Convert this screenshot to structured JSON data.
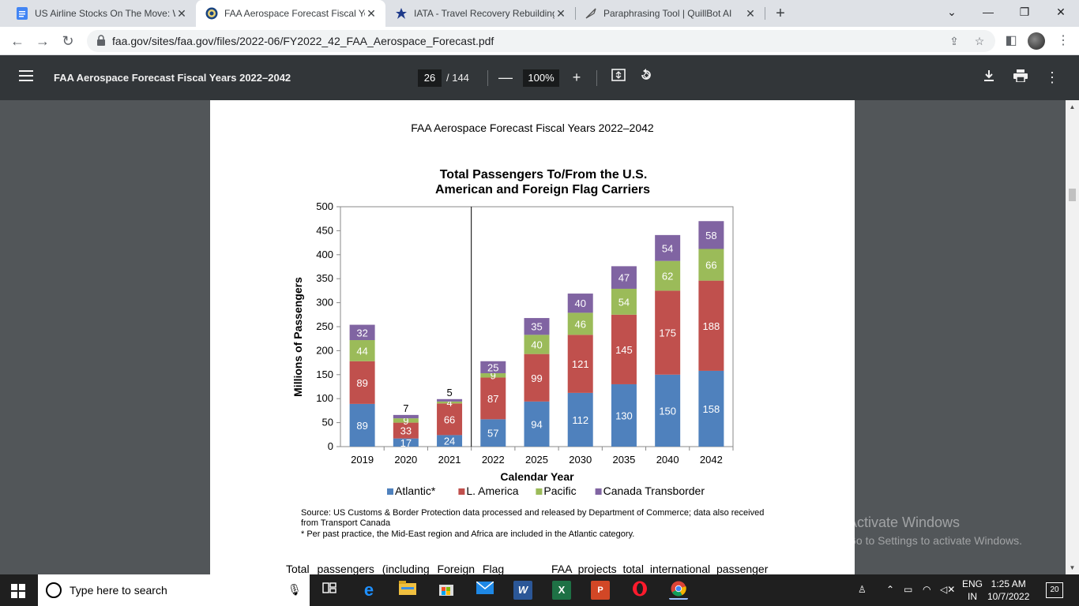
{
  "tabs": [
    {
      "title": "US Airline Stocks On The Move: W",
      "icon": "google-docs-icon",
      "active": false
    },
    {
      "title": "FAA Aerospace Forecast Fiscal Ye",
      "icon": "faa-seal-icon",
      "active": true
    },
    {
      "title": "IATA - Travel Recovery Rebuilding",
      "icon": "iata-icon",
      "active": false
    },
    {
      "title": "Paraphrasing Tool | QuillBot AI",
      "icon": "quillbot-icon",
      "active": false
    }
  ],
  "tab_close": "✕",
  "new_tab": "+",
  "window": {
    "minimize": "—",
    "maximize": "❐",
    "close": "✕",
    "tab_search": "⌄"
  },
  "address": {
    "url": "faa.gov/sites/faa.gov/files/2022-06/FY2022_42_FAA_Aerospace_Forecast.pdf"
  },
  "pdf_toolbar": {
    "title": "FAA Aerospace Forecast Fiscal Years 2022–2042",
    "page_current": "26",
    "page_total": "/ 144",
    "zoom": "100%",
    "zoom_out": "—",
    "zoom_in": "+"
  },
  "document": {
    "header": "FAA Aerospace Forecast Fiscal Years 2022–2042",
    "source": "Source:  US Customs & Border Protection data processed and released by Department of Commerce; data also received from Transport Canada",
    "note": "* Per past practice, the Mid-East region and Africa are included in the Atlantic category.",
    "body_left": "Total passengers (including Foreign Flag",
    "body_right": "FAA projects total international passenger"
  },
  "chart_data": {
    "type": "bar",
    "stacked": true,
    "title": "Total Passengers To/From the U.S.",
    "subtitle": "American and Foreign Flag Carriers",
    "xlabel": "Calendar Year",
    "ylabel": "Millions of Passengers",
    "ylim": [
      0,
      500
    ],
    "yticks": [
      0,
      50,
      100,
      150,
      200,
      250,
      300,
      350,
      400,
      450,
      500
    ],
    "categories": [
      "2019",
      "2020",
      "2021",
      "2022",
      "2025",
      "2030",
      "2035",
      "2040",
      "2042"
    ],
    "series": [
      {
        "name": "Atlantic*",
        "color": "#4f81bd",
        "values": [
          89,
          17,
          24,
          57,
          94,
          112,
          130,
          150,
          158
        ]
      },
      {
        "name": "L. America",
        "color": "#c0504d",
        "values": [
          89,
          33,
          66,
          87,
          99,
          121,
          145,
          175,
          188
        ]
      },
      {
        "name": "Pacific",
        "color": "#9bbb59",
        "values": [
          44,
          9,
          4,
          9,
          40,
          46,
          54,
          62,
          66
        ]
      },
      {
        "name": "Canada Transborder",
        "color": "#8064a2",
        "values": [
          32,
          7,
          5,
          25,
          35,
          40,
          47,
          54,
          58
        ]
      }
    ],
    "legend_position": "bottom",
    "divider_after_category": "2021"
  },
  "watermark": {
    "line1": "Activate Windows",
    "line2": "Go to Settings to activate Windows."
  },
  "taskbar": {
    "search_placeholder": "Type here to search",
    "lang_top": "ENG",
    "lang_bottom": "IN",
    "time": "1:25 AM",
    "date": "10/7/2022",
    "notifications": "20"
  }
}
